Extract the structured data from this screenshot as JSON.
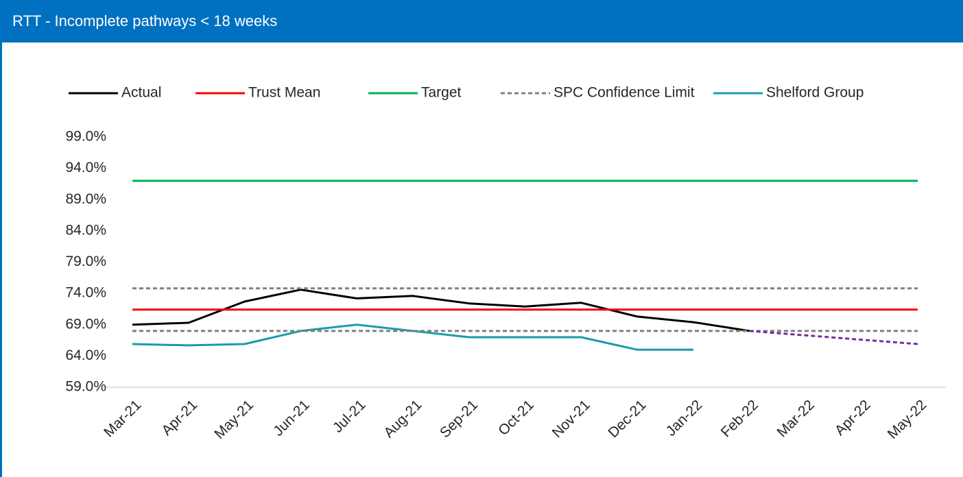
{
  "chart_data": {
    "type": "line",
    "title": "RTT - Incomplete pathways < 18 weeks",
    "categories": [
      "Mar-21",
      "Apr-21",
      "May-21",
      "Jun-21",
      "Jul-21",
      "Aug-21",
      "Sep-21",
      "Oct-21",
      "Nov-21",
      "Dec-21",
      "Jan-22",
      "Feb-22",
      "Mar-22",
      "Apr-22",
      "May-22"
    ],
    "series": [
      {
        "name": "Actual",
        "color": "#000000",
        "values": [
          69.0,
          69.3,
          72.7,
          74.6,
          73.2,
          73.6,
          72.4,
          71.9,
          72.5,
          70.3,
          69.4,
          68.0,
          null,
          null,
          null
        ]
      },
      {
        "name": "Trust Mean",
        "color": "#ff0000",
        "values": [
          71.4,
          71.4,
          71.4,
          71.4,
          71.4,
          71.4,
          71.4,
          71.4,
          71.4,
          71.4,
          71.4,
          71.4,
          71.4,
          71.4,
          71.4
        ]
      },
      {
        "name": "Target",
        "color": "#00b050",
        "values": [
          92.0,
          92.0,
          92.0,
          92.0,
          92.0,
          92.0,
          92.0,
          92.0,
          92.0,
          92.0,
          92.0,
          92.0,
          92.0,
          92.0,
          92.0
        ]
      },
      {
        "name": "SPC Confidence Limit",
        "color": "#808080",
        "dashed": true,
        "values": [
          74.8,
          74.8,
          74.8,
          74.8,
          74.8,
          74.8,
          74.8,
          74.8,
          74.8,
          74.8,
          74.8,
          74.8,
          74.8,
          74.8,
          74.8
        ]
      },
      {
        "name": "Shelford Group",
        "color": "#1b9aaa",
        "values": [
          65.9,
          65.7,
          65.9,
          68.0,
          69.0,
          68.0,
          67.0,
          67.0,
          67.0,
          65.0,
          65.0,
          null,
          null,
          null,
          null
        ]
      },
      {
        "color": "#808080",
        "dashed": true,
        "values": [
          68.0,
          68.0,
          68.0,
          68.0,
          68.0,
          68.0,
          68.0,
          68.0,
          68.0,
          68.0,
          68.0,
          68.0,
          68.0,
          68.0,
          68.0
        ]
      },
      {
        "color": "#7030a0",
        "dashed": true,
        "values": [
          null,
          null,
          null,
          null,
          null,
          null,
          null,
          null,
          null,
          null,
          null,
          68.0,
          67.3,
          66.6,
          65.9
        ]
      }
    ],
    "ylim": [
      59,
      99
    ],
    "yticks": [
      {
        "value": 59,
        "label": "59.0%"
      },
      {
        "value": 64,
        "label": "64.0%"
      },
      {
        "value": 69,
        "label": "69.0%"
      },
      {
        "value": 74,
        "label": "74.0%"
      },
      {
        "value": 79,
        "label": "79.0%"
      },
      {
        "value": 84,
        "label": "84.0%"
      },
      {
        "value": 89,
        "label": "89.0%"
      },
      {
        "value": 94,
        "label": "94.0%"
      },
      {
        "value": 99,
        "label": "99.0%"
      }
    ],
    "grid": false,
    "legend": "top"
  }
}
